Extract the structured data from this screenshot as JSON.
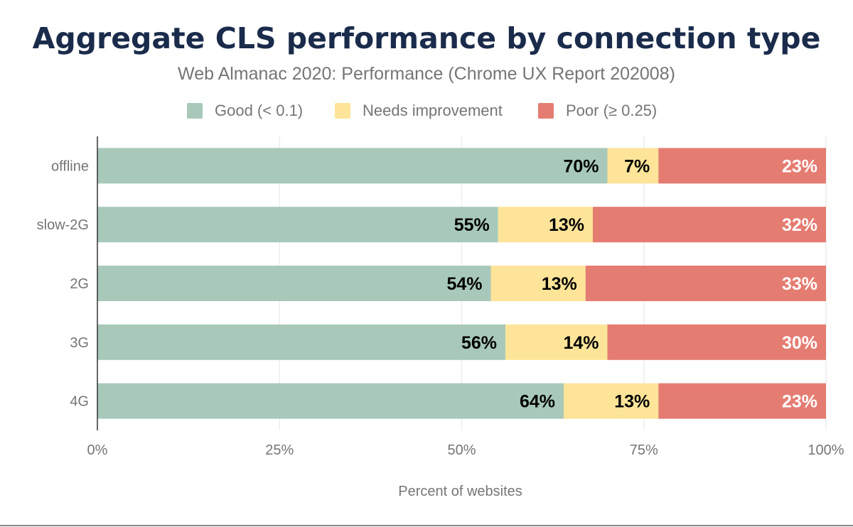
{
  "chart_data": {
    "type": "bar",
    "orientation": "horizontal",
    "stacked": true,
    "title": "Aggregate CLS performance by connection type",
    "subtitle": "Web Almanac 2020: Performance (Chrome UX Report 202008)",
    "xlabel": "Percent of websites",
    "ylabel": "",
    "xlim": [
      0,
      100
    ],
    "x_ticks": [
      "0%",
      "25%",
      "50%",
      "75%",
      "100%"
    ],
    "grid": true,
    "legend_position": "top",
    "categories": [
      "offline",
      "slow-2G",
      "2G",
      "3G",
      "4G"
    ],
    "series": [
      {
        "name": "Good (< 0.1)",
        "color": "#a8c9b9",
        "label_color": "#000000",
        "values": [
          70,
          55,
          54,
          56,
          64
        ]
      },
      {
        "name": "Needs improvement",
        "color": "#fde498",
        "label_color": "#000000",
        "values": [
          7,
          13,
          13,
          14,
          13
        ]
      },
      {
        "name": "Poor (≥ 0.25)",
        "color": "#e57c72",
        "label_color": "#ffffff",
        "values": [
          23,
          32,
          33,
          30,
          23
        ]
      }
    ]
  }
}
